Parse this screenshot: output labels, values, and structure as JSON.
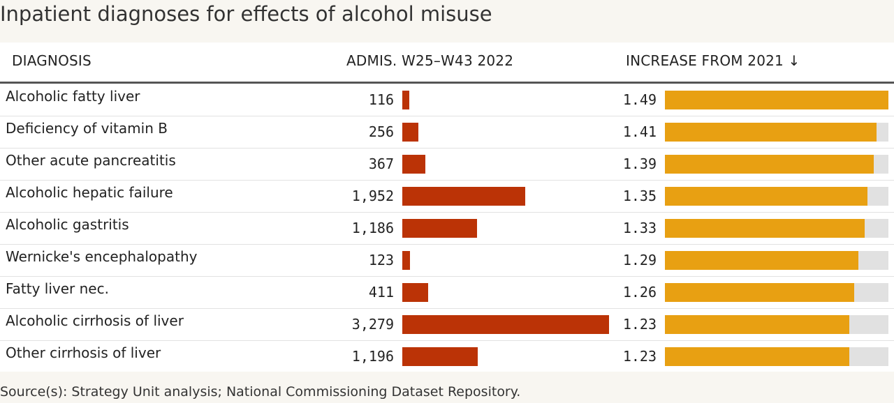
{
  "title": "Inpatient diagnoses for effects of alcohol misuse",
  "headers": {
    "diagnosis": "DIAGNOSIS",
    "admissions": "ADMIS. W25–W43 2022",
    "increase": "INCREASE FROM 2021 ↓"
  },
  "source": "Source(s): Strategy Unit analysis; National Commissioning Dataset Repository.",
  "colors": {
    "admissions_bar": "#bb3306",
    "increase_bar": "#e8a012",
    "track": "#e1e1e1"
  },
  "rows": [
    {
      "label": "Alcoholic fatty liver",
      "admissions": 116,
      "admissions_text": "116",
      "increase": 1.49,
      "increase_text": "1.49"
    },
    {
      "label": "Deficiency of vitamin B",
      "admissions": 256,
      "admissions_text": "256",
      "increase": 1.41,
      "increase_text": "1.41"
    },
    {
      "label": "Other acute pancreatitis",
      "admissions": 367,
      "admissions_text": "367",
      "increase": 1.39,
      "increase_text": "1.39"
    },
    {
      "label": "Alcoholic hepatic failure",
      "admissions": 1952,
      "admissions_text": "1,952",
      "increase": 1.35,
      "increase_text": "1.35"
    },
    {
      "label": "Alcoholic gastritis",
      "admissions": 1186,
      "admissions_text": "1,186",
      "increase": 1.33,
      "increase_text": "1.33"
    },
    {
      "label": "Wernicke's encephalopathy",
      "admissions": 123,
      "admissions_text": "123",
      "increase": 1.29,
      "increase_text": "1.29"
    },
    {
      "label": "Fatty liver nec.",
      "admissions": 411,
      "admissions_text": "411",
      "increase": 1.26,
      "increase_text": "1.26"
    },
    {
      "label": "Alcoholic cirrhosis of liver",
      "admissions": 3279,
      "admissions_text": "3,279",
      "increase": 1.23,
      "increase_text": "1.23"
    },
    {
      "label": "Other cirrhosis of liver",
      "admissions": 1196,
      "admissions_text": "1,196",
      "increase": 1.23,
      "increase_text": "1.23"
    }
  ],
  "chart_data": {
    "type": "table",
    "title": "Inpatient diagnoses for effects of alcohol misuse",
    "columns": [
      "DIAGNOSIS",
      "ADMIS. W25–W43 2022",
      "INCREASE FROM 2021 ↓"
    ],
    "categories": [
      "Alcoholic fatty liver",
      "Deficiency of vitamin B",
      "Other acute pancreatitis",
      "Alcoholic hepatic failure",
      "Alcoholic gastritis",
      "Wernicke's encephalopathy",
      "Fatty liver nec.",
      "Alcoholic cirrhosis of liver",
      "Other cirrhosis of liver"
    ],
    "series": [
      {
        "name": "ADMIS. W25–W43 2022",
        "values": [
          116,
          256,
          367,
          1952,
          1186,
          123,
          411,
          3279,
          1196
        ]
      },
      {
        "name": "INCREASE FROM 2021",
        "values": [
          1.49,
          1.41,
          1.39,
          1.35,
          1.33,
          1.29,
          1.26,
          1.23,
          1.23
        ]
      }
    ],
    "sort": "INCREASE FROM 2021 descending"
  }
}
